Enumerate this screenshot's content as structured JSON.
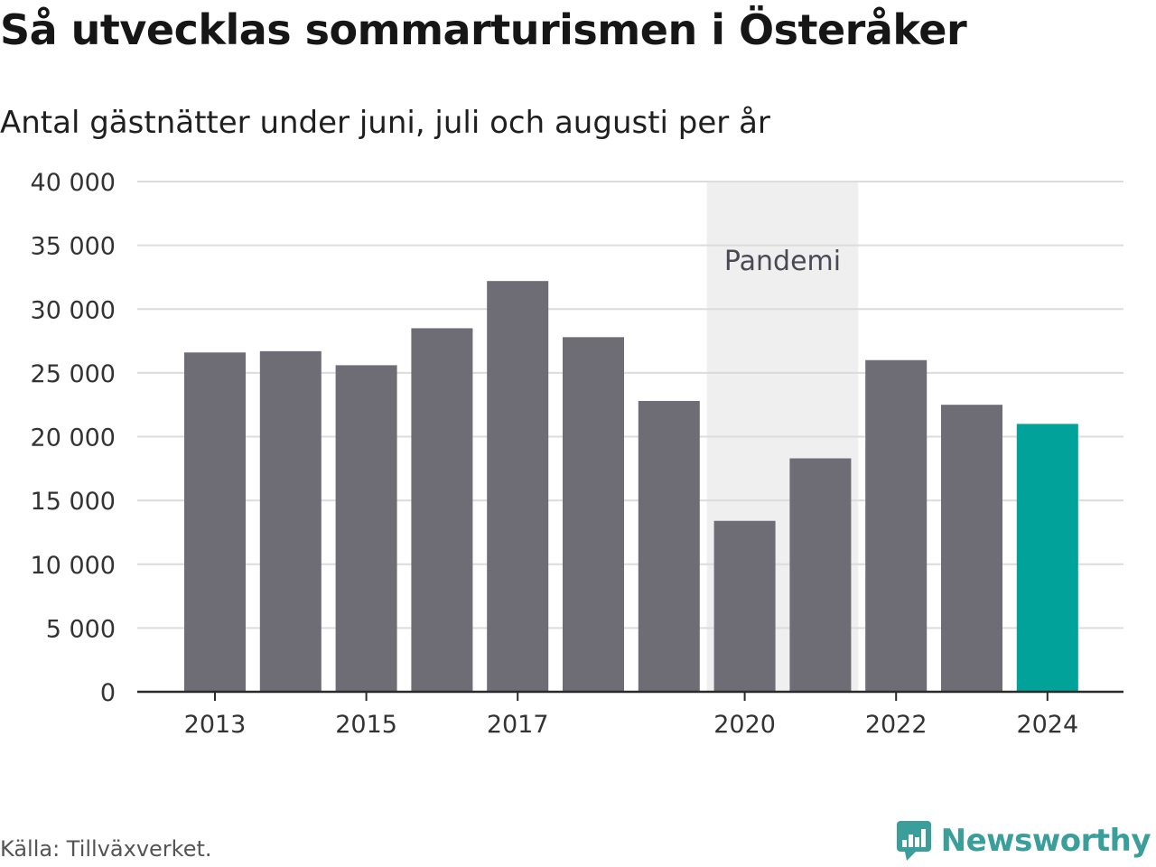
{
  "title": "Så utvecklas sommarturismen i Österåker",
  "subtitle": "Antal gästnätter under juni, juli och augusti per år",
  "source": "Källa: Tillväxverket.",
  "brand": {
    "name": "Newsworthy",
    "color": "#3a9e9a"
  },
  "colors": {
    "bar": "#6e6d75",
    "highlight": "#00a29a",
    "band": "#efefef",
    "grid": "#dcdcdc",
    "axis": "#2a2a2a"
  },
  "chart_data": {
    "type": "bar",
    "categories": [
      "2013",
      "2014",
      "2015",
      "2016",
      "2017",
      "2018",
      "2019",
      "2020",
      "2021",
      "2022",
      "2023",
      "2024"
    ],
    "values": [
      26600,
      26700,
      25600,
      28500,
      32200,
      27800,
      22800,
      13400,
      18300,
      26000,
      22500,
      21000
    ],
    "highlight_index": 11,
    "x_tick_labels": [
      "2013",
      "2015",
      "2017",
      "2020",
      "2022",
      "2024"
    ],
    "y_ticks": [
      0,
      5000,
      10000,
      15000,
      20000,
      25000,
      30000,
      35000,
      40000
    ],
    "y_tick_labels": [
      "0",
      "5 000",
      "10 000",
      "15 000",
      "20 000",
      "25 000",
      "30 000",
      "35 000",
      "40 000"
    ],
    "ylim": [
      0,
      40000
    ],
    "xlabel": "",
    "ylabel": "",
    "grid": true,
    "annotations": [
      {
        "label": "Pandemi",
        "from": "2020",
        "to": "2021"
      }
    ]
  }
}
